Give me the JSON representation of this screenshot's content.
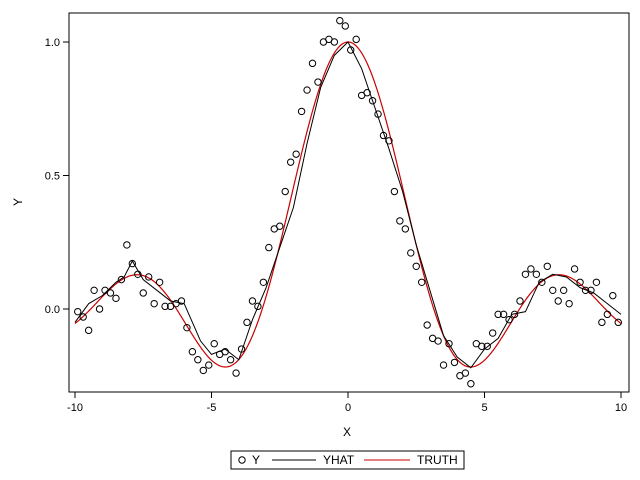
{
  "chart_data": {
    "type": "scatter",
    "xlabel": "X",
    "ylabel": "Y",
    "xlim": [
      -10,
      10
    ],
    "ylim": [
      -0.3,
      1.1
    ],
    "xticks": [
      -10,
      -5,
      0,
      5,
      10
    ],
    "yticks": [
      0.0,
      0.5,
      1.0
    ],
    "xtick_labels": [
      "-10",
      "-5",
      "0",
      "5",
      "10"
    ],
    "ytick_labels": [
      "0.0",
      "0.5",
      "1.0"
    ],
    "grid": false,
    "legend_placement": "bottom-center",
    "series": [
      {
        "name": "Y",
        "kind": "scatter",
        "marker": "open-circle",
        "color": "#000000",
        "x": [
          -9.9,
          -9.7,
          -9.5,
          -9.3,
          -9.1,
          -8.9,
          -8.7,
          -8.5,
          -8.3,
          -8.1,
          -7.9,
          -7.7,
          -7.5,
          -7.3,
          -7.1,
          -6.9,
          -6.7,
          -6.5,
          -6.3,
          -6.1,
          -5.9,
          -5.7,
          -5.5,
          -5.3,
          -5.1,
          -4.9,
          -4.7,
          -4.5,
          -4.3,
          -4.1,
          -3.9,
          -3.7,
          -3.5,
          -3.3,
          -3.1,
          -2.9,
          -2.7,
          -2.5,
          -2.3,
          -2.1,
          -1.9,
          -1.7,
          -1.5,
          -1.3,
          -1.1,
          -0.9,
          -0.7,
          -0.5,
          -0.3,
          -0.1,
          0.1,
          0.3,
          0.5,
          0.7,
          0.9,
          1.1,
          1.3,
          1.5,
          1.7,
          1.9,
          2.1,
          2.3,
          2.5,
          2.7,
          2.9,
          3.1,
          3.3,
          3.5,
          3.7,
          3.9,
          4.1,
          4.3,
          4.5,
          4.7,
          4.9,
          5.1,
          5.3,
          5.5,
          5.7,
          5.9,
          6.1,
          6.3,
          6.5,
          6.7,
          6.9,
          7.1,
          7.3,
          7.5,
          7.7,
          7.9,
          8.1,
          8.3,
          8.5,
          8.7,
          8.9,
          9.1,
          9.3,
          9.5,
          9.7,
          9.9
        ],
        "y": [
          -0.01,
          -0.03,
          -0.08,
          0.07,
          0.0,
          0.07,
          0.06,
          0.04,
          0.11,
          0.24,
          0.17,
          0.13,
          0.06,
          0.12,
          0.02,
          0.1,
          0.01,
          0.01,
          0.02,
          0.03,
          -0.07,
          -0.16,
          -0.19,
          -0.23,
          -0.21,
          -0.13,
          -0.17,
          -0.16,
          -0.19,
          -0.24,
          -0.15,
          -0.05,
          0.03,
          0.01,
          0.1,
          0.23,
          0.3,
          0.31,
          0.44,
          0.55,
          0.58,
          0.74,
          0.82,
          0.92,
          0.85,
          1.0,
          1.01,
          1.0,
          1.08,
          1.06,
          0.97,
          1.01,
          0.8,
          0.81,
          0.78,
          0.73,
          0.65,
          0.63,
          0.44,
          0.33,
          0.3,
          0.21,
          0.16,
          0.1,
          -0.06,
          -0.11,
          -0.12,
          -0.21,
          -0.13,
          -0.2,
          -0.25,
          -0.24,
          -0.28,
          -0.13,
          -0.14,
          -0.14,
          -0.09,
          -0.02,
          -0.02,
          -0.04,
          -0.02,
          0.03,
          0.13,
          0.15,
          0.13,
          0.1,
          0.16,
          0.07,
          0.03,
          0.07,
          0.02,
          0.15,
          0.1,
          0.07,
          0.07,
          0.1,
          -0.05,
          -0.02,
          0.05,
          -0.05
        ]
      },
      {
        "name": "YHAT",
        "kind": "line",
        "color": "#000000",
        "x": [
          -10.0,
          -9.5,
          -9.0,
          -8.5,
          -8.2,
          -7.9,
          -7.5,
          -7.0,
          -6.5,
          -6.0,
          -5.7,
          -5.4,
          -5.0,
          -4.5,
          -4.0,
          -3.5,
          -3.0,
          -2.5,
          -2.0,
          -1.5,
          -1.0,
          -0.5,
          0.0,
          0.5,
          1.0,
          1.5,
          2.0,
          2.5,
          3.0,
          3.5,
          4.0,
          4.5,
          5.0,
          5.5,
          6.0,
          6.5,
          7.0,
          7.5,
          8.0,
          8.5,
          9.0,
          9.5,
          10.0
        ],
        "y": [
          -0.05,
          0.02,
          0.05,
          0.1,
          0.12,
          0.18,
          0.11,
          0.07,
          0.03,
          0.02,
          -0.05,
          -0.12,
          -0.17,
          -0.15,
          -0.19,
          -0.04,
          0.08,
          0.23,
          0.38,
          0.62,
          0.83,
          0.95,
          1.0,
          0.9,
          0.75,
          0.6,
          0.44,
          0.24,
          0.07,
          -0.1,
          -0.18,
          -0.22,
          -0.15,
          -0.11,
          -0.02,
          -0.01,
          0.1,
          0.13,
          0.12,
          0.08,
          0.06,
          0.02,
          -0.02
        ]
      },
      {
        "name": "TRUTH",
        "kind": "line",
        "color": "#cc0000",
        "function": "sin(x)/x"
      }
    ]
  }
}
